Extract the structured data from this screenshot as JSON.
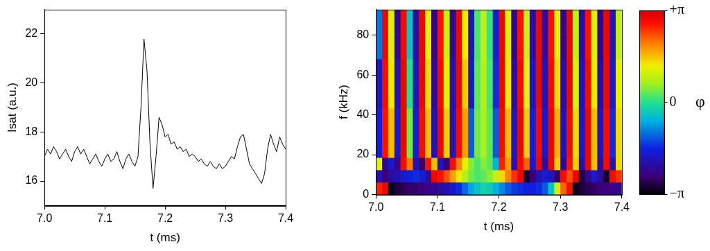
{
  "chart_data": [
    {
      "type": "line",
      "x_label": "t (ms)",
      "y_label": "Isat (a.u.)",
      "xlim": [
        7.0,
        7.4
      ],
      "xticks": [
        {
          "value": 7.0,
          "label": "7.0"
        },
        {
          "value": 7.1,
          "label": "7.1"
        },
        {
          "value": 7.2,
          "label": "7.2"
        },
        {
          "value": 7.3,
          "label": "7.3"
        },
        {
          "value": 7.4,
          "label": "7.4"
        }
      ],
      "ylim": [
        15,
        23
      ],
      "yticks": [
        16,
        18,
        20,
        22
      ],
      "grid": false,
      "color": "#000000",
      "x": [
        7.0,
        7.005,
        7.01,
        7.015,
        7.02,
        7.025,
        7.03,
        7.035,
        7.04,
        7.045,
        7.05,
        7.055,
        7.06,
        7.065,
        7.07,
        7.075,
        7.08,
        7.085,
        7.09,
        7.095,
        7.1,
        7.105,
        7.11,
        7.115,
        7.12,
        7.125,
        7.13,
        7.135,
        7.14,
        7.145,
        7.15,
        7.155,
        7.16,
        7.165,
        7.17,
        7.175,
        7.18,
        7.185,
        7.19,
        7.195,
        7.2,
        7.205,
        7.21,
        7.215,
        7.22,
        7.225,
        7.23,
        7.235,
        7.24,
        7.245,
        7.25,
        7.255,
        7.26,
        7.265,
        7.27,
        7.275,
        7.28,
        7.285,
        7.29,
        7.295,
        7.3,
        7.305,
        7.31,
        7.315,
        7.32,
        7.325,
        7.33,
        7.335,
        7.34,
        7.345,
        7.35,
        7.355,
        7.36,
        7.365,
        7.37,
        7.375,
        7.38,
        7.385,
        7.39,
        7.395,
        7.4
      ],
      "values": [
        17.0,
        17.3,
        17.1,
        17.4,
        17.2,
        16.9,
        17.1,
        17.3,
        17.0,
        16.8,
        17.2,
        17.4,
        17.1,
        17.3,
        17.0,
        16.7,
        16.9,
        17.1,
        16.8,
        16.6,
        16.9,
        17.1,
        16.8,
        16.9,
        17.2,
        16.8,
        16.5,
        16.9,
        17.1,
        16.8,
        16.6,
        17.0,
        19.0,
        21.8,
        20.5,
        17.5,
        15.7,
        17.0,
        18.6,
        18.3,
        17.8,
        17.9,
        17.5,
        17.6,
        17.3,
        17.4,
        17.2,
        17.3,
        17.0,
        17.1,
        17.0,
        16.8,
        16.9,
        16.7,
        16.6,
        16.8,
        16.6,
        16.5,
        16.7,
        16.5,
        16.6,
        16.8,
        17.0,
        16.9,
        17.4,
        17.8,
        17.9,
        17.3,
        16.7,
        16.5,
        16.3,
        16.1,
        15.9,
        16.3,
        17.3,
        17.9,
        17.5,
        17.2,
        17.8,
        17.5,
        17.3
      ]
    },
    {
      "type": "heatmap",
      "x_label": "t (ms)",
      "y_label": "f (kHz)",
      "xlim": [
        7.0,
        7.4
      ],
      "xticks": [
        {
          "value": 7.0,
          "label": "7.0"
        },
        {
          "value": 7.1,
          "label": "7.1"
        },
        {
          "value": 7.2,
          "label": "7.2"
        },
        {
          "value": 7.3,
          "label": "7.3"
        },
        {
          "value": 7.4,
          "label": "7.4"
        }
      ],
      "ylim": [
        0,
        93
      ],
      "yticks": [
        0,
        20,
        40,
        60,
        80
      ],
      "grid": false,
      "x_bins": [
        7.0,
        7.01,
        7.02,
        7.03,
        7.04,
        7.05,
        7.06,
        7.07,
        7.08,
        7.09,
        7.1,
        7.11,
        7.12,
        7.13,
        7.14,
        7.15,
        7.16,
        7.17,
        7.18,
        7.19,
        7.2,
        7.21,
        7.22,
        7.23,
        7.24,
        7.25,
        7.26,
        7.27,
        7.28,
        7.29,
        7.3,
        7.31,
        7.32,
        7.33,
        7.34,
        7.35,
        7.36,
        7.37,
        7.38,
        7.39,
        7.4
      ],
      "y_bins": [
        0,
        6.2,
        12.4,
        18.6,
        24.8,
        31,
        37.2,
        43.4,
        49.6,
        55.8,
        62,
        68.2,
        74.4,
        80.6,
        86.8,
        93
      ],
      "cells": [
        [
          2.6,
          2.9,
          -3.0,
          -2.8,
          -2.7,
          -2.6,
          -2.6,
          -2.5,
          -2.4,
          -2.3,
          -2.2,
          -2.0,
          -1.8,
          -1.5,
          -1.1,
          -0.7,
          -0.4,
          -0.2,
          -0.3,
          -0.6,
          -0.9,
          -1.2,
          -1.4,
          -1.5,
          -1.6,
          -1.6,
          -1.5,
          -1.2,
          -0.4,
          1.0,
          2.2,
          2.8,
          -3.0,
          -2.8,
          -2.7,
          -2.6,
          -2.5,
          -2.5,
          -2.4,
          -2.3
        ],
        [
          -2.0,
          -2.5,
          -2.2,
          -2.0,
          -1.8,
          -1.6,
          -1.5,
          -1.7,
          -2.2,
          2.9,
          2.7,
          2.3,
          1.8,
          1.3,
          0.8,
          0.4,
          0.2,
          0.3,
          0.5,
          0.9,
          1.4,
          2.0,
          2.5,
          2.9,
          -2.9,
          -2.5,
          -2.0,
          -1.7,
          -1.9,
          -2.6,
          2.8,
          2.3,
          2.9,
          -2.8,
          -2.3,
          -1.8,
          -2.2,
          -2.9,
          2.8,
          2.5
        ],
        [
          1.2,
          -2.3,
          -1.8,
          -2.4,
          2.8,
          2.0,
          -2.0,
          -2.6,
          2.7,
          1.6,
          -1.9,
          -2.5,
          2.8,
          2.0,
          1.2,
          0.5,
          0.2,
          0.5,
          0.3,
          -0.6,
          2.6,
          1.8,
          -2.0,
          2.8,
          2.2,
          -1.8,
          2.9,
          -2.2,
          2.9,
          1.5,
          -2.3,
          2.7,
          1.5,
          -2.0,
          2.9,
          1.6,
          -2.2,
          2.8,
          -2.0,
          1.4
        ],
        [
          -1.6,
          2.7,
          1.6,
          -1.8,
          2.9,
          0.4,
          -1.7,
          2.8,
          1.6,
          -2.0,
          2.9,
          1.5,
          -1.9,
          2.8,
          1.8,
          -1.2,
          0.4,
          0.7,
          0.3,
          -1.2,
          2.8,
          1.6,
          -1.9,
          2.9,
          1.5,
          -1.7,
          2.8,
          -1.8,
          2.9,
          1.7,
          -2.0,
          2.8,
          1.4,
          -1.8,
          2.9,
          1.6,
          -1.9,
          2.8,
          -1.5,
          1.4
        ],
        [
          -1.6,
          2.7,
          1.6,
          -1.8,
          2.9,
          0.4,
          -1.7,
          2.8,
          1.6,
          -2.0,
          2.9,
          1.5,
          -1.9,
          2.8,
          1.8,
          -1.2,
          0.4,
          0.7,
          0.3,
          -1.2,
          2.8,
          1.6,
          -1.9,
          2.9,
          1.5,
          -1.7,
          2.8,
          -1.8,
          2.9,
          1.7,
          -2.0,
          2.8,
          1.4,
          -1.8,
          2.9,
          1.6,
          -1.9,
          2.8,
          -1.5,
          1.4
        ],
        [
          -1.6,
          2.7,
          1.6,
          -1.8,
          2.9,
          0.4,
          -1.7,
          2.8,
          1.6,
          -2.0,
          2.9,
          1.5,
          -1.9,
          2.8,
          1.8,
          -1.2,
          0.4,
          0.7,
          0.3,
          -1.2,
          2.8,
          1.6,
          -1.9,
          2.9,
          1.5,
          -1.7,
          2.8,
          -1.8,
          2.9,
          1.7,
          -2.0,
          2.8,
          1.4,
          -1.8,
          2.9,
          1.6,
          -1.9,
          2.8,
          -1.5,
          1.4
        ],
        [
          -1.6,
          2.7,
          1.6,
          -1.8,
          2.9,
          0.4,
          -1.7,
          2.8,
          1.6,
          -2.0,
          2.9,
          1.5,
          -1.9,
          2.8,
          1.8,
          -1.2,
          0.4,
          0.7,
          0.3,
          -1.2,
          2.8,
          1.6,
          -1.9,
          2.9,
          1.5,
          -1.7,
          2.8,
          -1.8,
          2.9,
          1.7,
          -2.0,
          2.8,
          1.4,
          -1.8,
          2.9,
          1.6,
          -1.9,
          2.8,
          -1.5,
          1.4
        ],
        [
          -1.8,
          2.8,
          1.3,
          -2.0,
          2.9,
          0,
          -1.9,
          2.9,
          1.4,
          -2.2,
          2.8,
          1.2,
          -2.0,
          2.9,
          1.5,
          -1.8,
          0.3,
          0.8,
          0.2,
          -1.5,
          2.9,
          1.3,
          -2.1,
          2.8,
          1.2,
          -1.9,
          2.9,
          -2.0,
          2.8,
          1.4,
          -2.2,
          2.9,
          1.1,
          -1.9,
          2.8,
          1.3,
          -2.1,
          2.9,
          -1.7,
          1.2
        ],
        [
          -1.8,
          2.8,
          1.3,
          -2.0,
          2.9,
          0,
          -1.9,
          2.9,
          1.4,
          -2.2,
          2.8,
          1.2,
          -2.0,
          2.9,
          1.5,
          -1.8,
          0.3,
          0.8,
          0.2,
          -1.5,
          2.9,
          1.3,
          -2.1,
          2.8,
          1.2,
          -1.9,
          2.9,
          -2.0,
          2.8,
          1.4,
          -2.2,
          2.9,
          1.1,
          -1.9,
          2.8,
          1.3,
          -2.1,
          2.9,
          -1.7,
          1.2
        ],
        [
          -1.8,
          2.8,
          1.3,
          -2.0,
          2.9,
          0,
          -1.9,
          2.9,
          1.4,
          -2.2,
          2.8,
          1.2,
          -2.0,
          2.9,
          1.5,
          -1.8,
          0.3,
          0.8,
          0.2,
          -1.5,
          2.9,
          1.3,
          -2.1,
          2.8,
          1.2,
          -1.9,
          2.9,
          -2.0,
          2.8,
          1.4,
          -2.2,
          2.9,
          1.1,
          -1.9,
          2.8,
          1.3,
          -2.1,
          2.9,
          -1.7,
          1.2
        ],
        [
          -1.8,
          2.8,
          1.3,
          -2.0,
          2.9,
          0,
          -1.9,
          2.9,
          1.4,
          -2.2,
          2.8,
          1.2,
          -2.0,
          2.9,
          1.5,
          -1.8,
          0.3,
          0.8,
          0.2,
          -1.5,
          2.9,
          1.3,
          -2.1,
          2.8,
          1.2,
          -1.9,
          2.9,
          -2.0,
          2.8,
          1.4,
          -2.2,
          2.9,
          1.1,
          -1.9,
          2.8,
          1.3,
          -2.1,
          2.9,
          -1.7,
          1.2
        ],
        [
          -1.0,
          2.9,
          1.1,
          -2.3,
          2.8,
          -0.4,
          -2.1,
          2.9,
          1.2,
          -2.4,
          2.7,
          1.0,
          -2.2,
          2.9,
          1.3,
          -2.0,
          0.2,
          0.9,
          0.1,
          -1.7,
          2.9,
          1.1,
          -2.3,
          2.7,
          1.0,
          -2.1,
          2.9,
          -2.2,
          2.7,
          1.2,
          -2.4,
          2.9,
          0.9,
          -2.1,
          2.7,
          1.1,
          -2.3,
          2.9,
          -1.9,
          0.9
        ],
        [
          -1.0,
          2.9,
          1.1,
          -2.3,
          2.8,
          -0.4,
          -2.1,
          2.9,
          1.2,
          -2.4,
          2.7,
          1.0,
          -2.2,
          2.9,
          1.3,
          -2.0,
          0.2,
          0.9,
          0.1,
          -1.7,
          2.9,
          1.1,
          -2.3,
          2.7,
          1.0,
          -2.1,
          2.9,
          -2.2,
          2.7,
          1.2,
          -2.4,
          2.9,
          0.9,
          -2.1,
          2.7,
          1.1,
          -2.3,
          2.9,
          -1.9,
          0.9
        ],
        [
          -1.0,
          2.9,
          1.1,
          -2.3,
          2.8,
          -0.4,
          -2.1,
          2.9,
          1.2,
          -2.4,
          2.7,
          1.0,
          -2.2,
          2.9,
          1.3,
          -2.0,
          0.2,
          0.9,
          0.1,
          -1.7,
          2.9,
          1.1,
          -2.3,
          2.7,
          1.0,
          -2.1,
          2.9,
          -2.2,
          2.7,
          1.2,
          -2.4,
          2.9,
          0.9,
          -2.1,
          2.7,
          1.1,
          -2.3,
          2.9,
          -1.9,
          0.9
        ],
        [
          -1.0,
          2.9,
          1.1,
          -2.3,
          2.8,
          -0.4,
          -2.1,
          2.9,
          1.2,
          -2.4,
          2.7,
          1.0,
          -2.2,
          2.9,
          1.3,
          -2.0,
          0.2,
          0.9,
          0.1,
          -1.7,
          2.9,
          1.1,
          -2.3,
          2.7,
          1.0,
          -2.1,
          2.9,
          -2.2,
          2.7,
          1.2,
          -2.4,
          2.9,
          0.9,
          -2.1,
          2.7,
          1.1,
          -2.3,
          2.9,
          -1.9,
          0.9
        ]
      ],
      "colorbar": {
        "label": "φ",
        "range": [
          -3.1416,
          3.1416
        ],
        "ticks": [
          {
            "value": 3.1416,
            "label": "+π"
          },
          0,
          {
            "value": -3.1416,
            "label": "−π"
          }
        ]
      }
    }
  ]
}
